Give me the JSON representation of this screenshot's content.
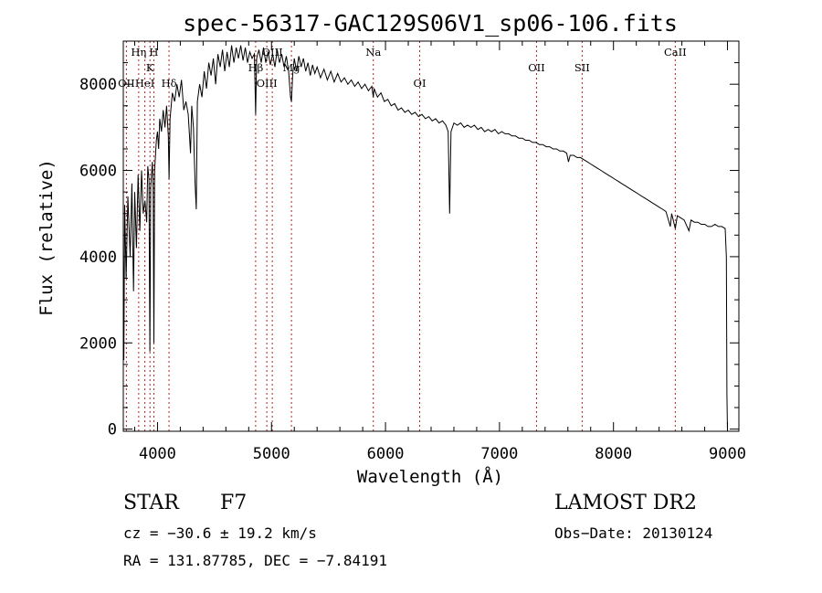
{
  "chart_data": {
    "type": "line",
    "title": "spec-56317-GAC129S06V1_sp06-106.fits",
    "xlabel": "Wavelength (Å)",
    "ylabel": "Flux (relative)",
    "xlim": [
      3700,
      9100
    ],
    "ylim": [
      -50,
      9000
    ],
    "xticks": [
      4000,
      5000,
      6000,
      7000,
      8000,
      9000
    ],
    "yticks": [
      0,
      2000,
      4000,
      6000,
      8000
    ],
    "series": [
      {
        "name": "spectrum",
        "points": [
          [
            3700,
            4200
          ],
          [
            3705,
            1600
          ],
          [
            3712,
            5200
          ],
          [
            3725,
            3500
          ],
          [
            3740,
            5400
          ],
          [
            3760,
            4000
          ],
          [
            3775,
            5700
          ],
          [
            3790,
            3200
          ],
          [
            3800,
            5500
          ],
          [
            3815,
            4200
          ],
          [
            3830,
            5900
          ],
          [
            3845,
            4600
          ],
          [
            3860,
            6000
          ],
          [
            3875,
            5000
          ],
          [
            3890,
            5300
          ],
          [
            3905,
            4800
          ],
          [
            3915,
            6100
          ],
          [
            3925,
            5800
          ],
          [
            3933,
            1800
          ],
          [
            3940,
            5600
          ],
          [
            3955,
            6200
          ],
          [
            3962,
            5600
          ],
          [
            3968,
            2000
          ],
          [
            3975,
            6000
          ],
          [
            3990,
            6700
          ],
          [
            4000,
            6900
          ],
          [
            4010,
            6500
          ],
          [
            4020,
            7200
          ],
          [
            4035,
            6900
          ],
          [
            4050,
            7400
          ],
          [
            4065,
            7000
          ],
          [
            4080,
            7500
          ],
          [
            4095,
            6800
          ],
          [
            4101,
            5800
          ],
          [
            4110,
            7200
          ],
          [
            4130,
            7800
          ],
          [
            4150,
            7600
          ],
          [
            4170,
            8000
          ],
          [
            4190,
            7700
          ],
          [
            4210,
            8100
          ],
          [
            4230,
            7400
          ],
          [
            4250,
            7600
          ],
          [
            4270,
            7300
          ],
          [
            4290,
            6400
          ],
          [
            4300,
            7500
          ],
          [
            4315,
            7000
          ],
          [
            4330,
            5700
          ],
          [
            4340,
            5100
          ],
          [
            4350,
            7600
          ],
          [
            4370,
            8000
          ],
          [
            4390,
            7700
          ],
          [
            4410,
            8300
          ],
          [
            4430,
            7900
          ],
          [
            4450,
            8500
          ],
          [
            4470,
            8200
          ],
          [
            4490,
            8600
          ],
          [
            4510,
            8000
          ],
          [
            4530,
            8700
          ],
          [
            4550,
            8400
          ],
          [
            4570,
            8800
          ],
          [
            4590,
            8300
          ],
          [
            4610,
            8750
          ],
          [
            4630,
            8400
          ],
          [
            4650,
            8900
          ],
          [
            4670,
            8500
          ],
          [
            4690,
            8850
          ],
          [
            4710,
            8600
          ],
          [
            4730,
            8900
          ],
          [
            4750,
            8550
          ],
          [
            4770,
            8850
          ],
          [
            4790,
            8500
          ],
          [
            4810,
            8750
          ],
          [
            4830,
            8600
          ],
          [
            4850,
            8700
          ],
          [
            4861,
            7300
          ],
          [
            4870,
            8600
          ],
          [
            4890,
            8800
          ],
          [
            4910,
            8500
          ],
          [
            4930,
            8850
          ],
          [
            4950,
            8500
          ],
          [
            4970,
            8750
          ],
          [
            4990,
            8450
          ],
          [
            5010,
            8700
          ],
          [
            5030,
            8400
          ],
          [
            5050,
            8800
          ],
          [
            5070,
            8500
          ],
          [
            5090,
            8700
          ],
          [
            5110,
            8400
          ],
          [
            5130,
            8650
          ],
          [
            5150,
            8300
          ],
          [
            5167,
            7700
          ],
          [
            5175,
            7600
          ],
          [
            5185,
            8200
          ],
          [
            5200,
            8600
          ],
          [
            5220,
            8300
          ],
          [
            5240,
            8650
          ],
          [
            5260,
            8400
          ],
          [
            5280,
            8600
          ],
          [
            5300,
            8300
          ],
          [
            5320,
            8500
          ],
          [
            5340,
            8200
          ],
          [
            5360,
            8450
          ],
          [
            5380,
            8250
          ],
          [
            5400,
            8400
          ],
          [
            5430,
            8150
          ],
          [
            5460,
            8350
          ],
          [
            5490,
            8100
          ],
          [
            5520,
            8300
          ],
          [
            5550,
            8050
          ],
          [
            5580,
            8250
          ],
          [
            5610,
            8050
          ],
          [
            5640,
            8150
          ],
          [
            5670,
            8000
          ],
          [
            5700,
            8100
          ],
          [
            5730,
            7950
          ],
          [
            5760,
            8050
          ],
          [
            5790,
            7900
          ],
          [
            5820,
            8000
          ],
          [
            5850,
            7850
          ],
          [
            5880,
            7950
          ],
          [
            5893,
            7700
          ],
          [
            5900,
            7900
          ],
          [
            5930,
            7700
          ],
          [
            5960,
            7800
          ],
          [
            5990,
            7600
          ],
          [
            6020,
            7650
          ],
          [
            6050,
            7500
          ],
          [
            6080,
            7550
          ],
          [
            6110,
            7400
          ],
          [
            6140,
            7450
          ],
          [
            6170,
            7350
          ],
          [
            6200,
            7400
          ],
          [
            6230,
            7300
          ],
          [
            6260,
            7350
          ],
          [
            6290,
            7250
          ],
          [
            6320,
            7300
          ],
          [
            6350,
            7200
          ],
          [
            6380,
            7250
          ],
          [
            6410,
            7150
          ],
          [
            6440,
            7200
          ],
          [
            6470,
            7100
          ],
          [
            6500,
            7150
          ],
          [
            6530,
            7050
          ],
          [
            6550,
            6900
          ],
          [
            6563,
            5000
          ],
          [
            6575,
            6900
          ],
          [
            6600,
            7100
          ],
          [
            6630,
            7050
          ],
          [
            6660,
            7100
          ],
          [
            6690,
            7000
          ],
          [
            6720,
            7050
          ],
          [
            6750,
            7000
          ],
          [
            6780,
            7050
          ],
          [
            6810,
            6950
          ],
          [
            6840,
            7000
          ],
          [
            6870,
            6900
          ],
          [
            6900,
            6950
          ],
          [
            6930,
            6900
          ],
          [
            6960,
            6950
          ],
          [
            6990,
            6850
          ],
          [
            7020,
            6900
          ],
          [
            7050,
            6850
          ],
          [
            7080,
            6850
          ],
          [
            7110,
            6800
          ],
          [
            7140,
            6800
          ],
          [
            7170,
            6750
          ],
          [
            7200,
            6750
          ],
          [
            7230,
            6700
          ],
          [
            7260,
            6700
          ],
          [
            7290,
            6650
          ],
          [
            7320,
            6650
          ],
          [
            7350,
            6600
          ],
          [
            7380,
            6600
          ],
          [
            7410,
            6550
          ],
          [
            7440,
            6550
          ],
          [
            7470,
            6500
          ],
          [
            7500,
            6500
          ],
          [
            7530,
            6450
          ],
          [
            7560,
            6450
          ],
          [
            7590,
            6400
          ],
          [
            7605,
            6200
          ],
          [
            7620,
            6350
          ],
          [
            7650,
            6350
          ],
          [
            7680,
            6300
          ],
          [
            7710,
            6300
          ],
          [
            7740,
            6250
          ],
          [
            7770,
            6200
          ],
          [
            7800,
            6150
          ],
          [
            7830,
            6100
          ],
          [
            7860,
            6050
          ],
          [
            7890,
            6000
          ],
          [
            7920,
            5950
          ],
          [
            7950,
            5900
          ],
          [
            7980,
            5850
          ],
          [
            8010,
            5800
          ],
          [
            8040,
            5750
          ],
          [
            8070,
            5700
          ],
          [
            8100,
            5650
          ],
          [
            8130,
            5600
          ],
          [
            8160,
            5550
          ],
          [
            8190,
            5500
          ],
          [
            8220,
            5450
          ],
          [
            8250,
            5400
          ],
          [
            8280,
            5350
          ],
          [
            8310,
            5300
          ],
          [
            8340,
            5250
          ],
          [
            8370,
            5200
          ],
          [
            8400,
            5150
          ],
          [
            8430,
            5100
          ],
          [
            8460,
            5050
          ],
          [
            8498,
            4700
          ],
          [
            8510,
            5000
          ],
          [
            8542,
            4650
          ],
          [
            8560,
            4950
          ],
          [
            8590,
            4900
          ],
          [
            8620,
            4850
          ],
          [
            8662,
            4600
          ],
          [
            8680,
            4850
          ],
          [
            8710,
            4800
          ],
          [
            8740,
            4800
          ],
          [
            8770,
            4750
          ],
          [
            8800,
            4750
          ],
          [
            8830,
            4700
          ],
          [
            8860,
            4700
          ],
          [
            8890,
            4750
          ],
          [
            8920,
            4700
          ],
          [
            8950,
            4700
          ],
          [
            8980,
            4650
          ],
          [
            8990,
            4000
          ],
          [
            8995,
            800
          ],
          [
            9000,
            -50
          ]
        ]
      }
    ],
    "lines": [
      {
        "label": "OII",
        "wavelength": 3727,
        "row": 4
      },
      {
        "label": "Hη",
        "wavelength": 3835,
        "row": 1
      },
      {
        "label": "HeI",
        "wavelength": 3889,
        "row": 4
      },
      {
        "label": "K",
        "wavelength": 3934,
        "row": 2
      },
      {
        "label": "H",
        "wavelength": 3968,
        "row": 1
      },
      {
        "label": "Hδ",
        "wavelength": 4101,
        "row": 4
      },
      {
        "label": "Hβ",
        "wavelength": 4861,
        "row": 3
      },
      {
        "label": "OIII",
        "wavelength": 4959,
        "row": 4
      },
      {
        "label": "OIII",
        "wavelength": 5007,
        "row": 1
      },
      {
        "label": "Mg",
        "wavelength": 5175,
        "row": 3
      },
      {
        "label": "Na",
        "wavelength": 5893,
        "row": 1
      },
      {
        "label": "OI",
        "wavelength": 6300,
        "row": 4
      },
      {
        "label": "OII",
        "wavelength": 7325,
        "row": 3
      },
      {
        "label": "SII",
        "wavelength": 7725,
        "row": 3
      },
      {
        "label": "CaII",
        "wavelength": 8542,
        "row": 1
      }
    ]
  },
  "info": {
    "object_class": "STAR",
    "subclass": "F7",
    "cz": "cz = −30.6 ± 19.2 km/s",
    "radec": "RA = 131.87785, DEC =  −7.84191",
    "survey": "LAMOST DR2",
    "obs_date": "Obs−Date: 20130124"
  }
}
